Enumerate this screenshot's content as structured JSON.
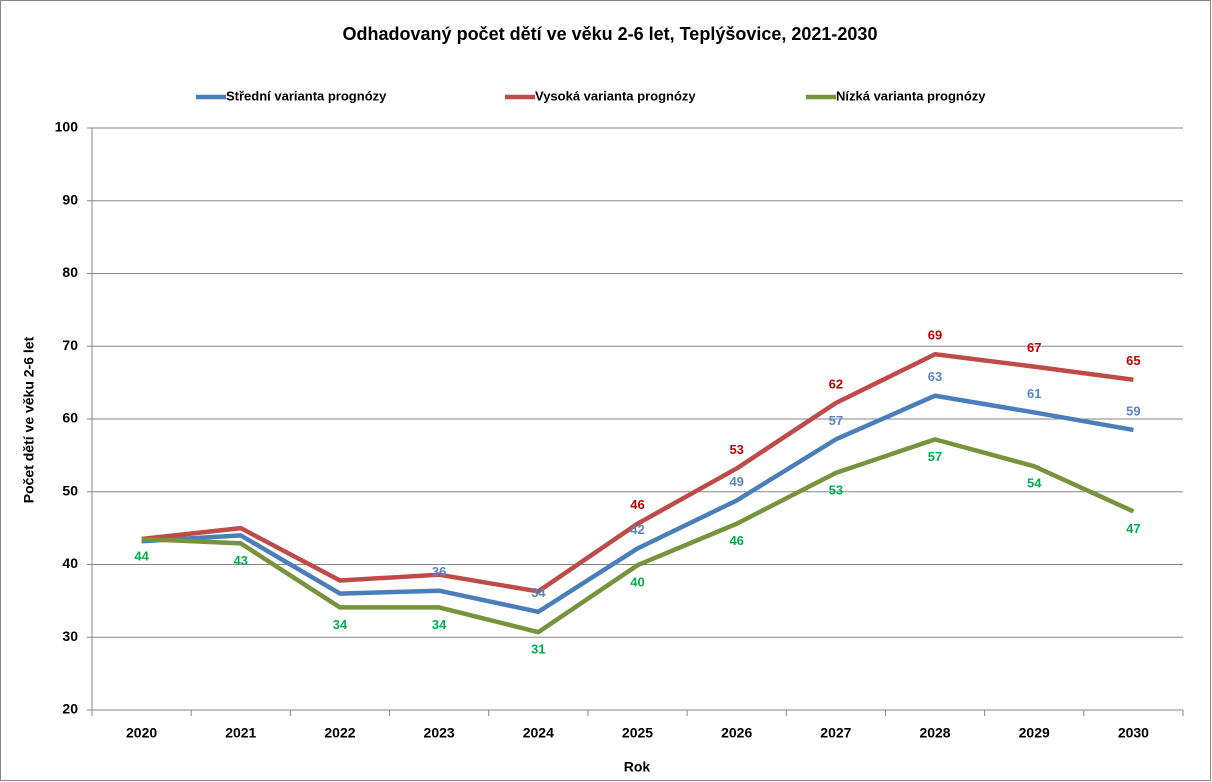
{
  "chart_data": {
    "type": "line",
    "title": "Odhadovaný počet dětí ve věku 2-6 let, Teplýšovice, 2021-2030",
    "x_label": "Rok",
    "y_label": "Počet dětí ve věku 2-6 let",
    "categories": [
      "2020",
      "2021",
      "2022",
      "2023",
      "2024",
      "2025",
      "2026",
      "2027",
      "2028",
      "2029",
      "2030"
    ],
    "series": [
      {
        "name": "Střední varianta prognózy",
        "color": "#4a7ebb",
        "label_color": "#5b86c0",
        "label_side": "above",
        "values": [
          43.2,
          44,
          36,
          36.4,
          33.5,
          42.2,
          48.8,
          57.2,
          63.2,
          60.9,
          58.5
        ],
        "value_labels": [
          null,
          null,
          null,
          "36",
          "34",
          "42",
          "49",
          "57",
          "63",
          "61",
          "59"
        ]
      },
      {
        "name": "Vysoká varianta prognózy",
        "color": "#be4b48",
        "label_color": "#c00000",
        "label_side": "above",
        "values": [
          43.5,
          45,
          37.8,
          38.6,
          36.3,
          45.6,
          53.2,
          62.2,
          68.9,
          67.2,
          65.4
        ],
        "value_labels": [
          null,
          null,
          null,
          null,
          null,
          "46",
          "53",
          "62",
          "69",
          "67",
          "65"
        ]
      },
      {
        "name": "Nízká varianta prognózy",
        "color": "#77933c",
        "label_color": "#00b050",
        "label_side": "below",
        "values": [
          43.5,
          42.9,
          34.1,
          34.1,
          30.7,
          39.9,
          45.6,
          52.6,
          57.2,
          53.5,
          47.3
        ],
        "value_labels": [
          "44",
          "43",
          "34",
          "34",
          "31",
          "40",
          "46",
          "53",
          "57",
          "54",
          "47"
        ]
      }
    ],
    "ylim": [
      20,
      100
    ],
    "yticks": [
      20,
      30,
      40,
      50,
      60,
      70,
      80,
      90,
      100
    ],
    "grid": true,
    "legend": "top"
  }
}
